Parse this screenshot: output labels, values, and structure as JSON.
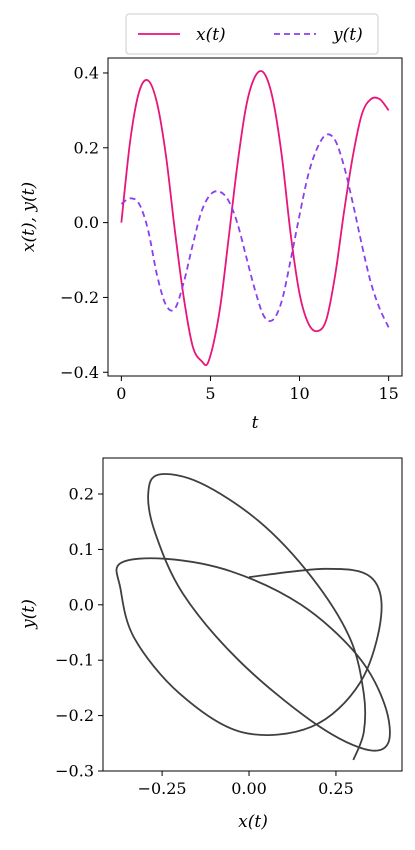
{
  "chart_data": [
    {
      "type": "line",
      "xlabel": "t",
      "ylabel": "x(t), y(t)",
      "xlim": [
        -0.75,
        15.75
      ],
      "ylim": [
        -0.41,
        0.44
      ],
      "xticks": [
        0,
        5,
        10,
        15
      ],
      "xtick_labels": [
        "0",
        "5",
        "10",
        "15"
      ],
      "yticks": [
        -0.4,
        -0.2,
        0.0,
        0.2,
        0.4
      ],
      "ytick_labels": [
        "−0.4",
        "−0.2",
        "0.0",
        "0.2",
        "0.4"
      ],
      "legend_position": "above",
      "series": [
        {
          "name": "x(t)",
          "color": "#e8157a",
          "style": "solid",
          "x": [
            0,
            0.5,
            1.0,
            1.5,
            2.0,
            2.5,
            3.0,
            3.5,
            4.0,
            4.5,
            4.9,
            5.5,
            6.0,
            6.5,
            7.0,
            7.5,
            8.0,
            8.5,
            9.0,
            9.5,
            10.0,
            10.5,
            11.0,
            11.5,
            12.0,
            12.5,
            13.0,
            13.5,
            14.0,
            14.5,
            15.0
          ],
          "values": [
            0.0,
            0.22,
            0.35,
            0.38,
            0.32,
            0.18,
            -0.02,
            -0.2,
            -0.33,
            -0.37,
            -0.37,
            -0.24,
            -0.05,
            0.15,
            0.31,
            0.39,
            0.4,
            0.33,
            0.18,
            -0.03,
            -0.19,
            -0.27,
            -0.29,
            -0.26,
            -0.14,
            0.03,
            0.18,
            0.29,
            0.33,
            0.33,
            0.3
          ]
        },
        {
          "name": "y(t)",
          "color": "#8a3ff0",
          "style": "dashed",
          "x": [
            0,
            0.5,
            1.0,
            1.5,
            2.0,
            2.5,
            3.0,
            3.5,
            4.0,
            4.5,
            5.0,
            5.5,
            6.0,
            6.5,
            7.0,
            7.5,
            8.0,
            8.5,
            9.0,
            9.5,
            10.0,
            10.5,
            11.0,
            11.5,
            12.0,
            12.5,
            13.0,
            13.5,
            14.0,
            14.5,
            15.0
          ],
          "values": [
            0.05,
            0.065,
            0.05,
            -0.02,
            -0.14,
            -0.22,
            -0.23,
            -0.16,
            -0.06,
            0.03,
            0.075,
            0.083,
            0.06,
            0.0,
            -0.09,
            -0.18,
            -0.25,
            -0.26,
            -0.21,
            -0.1,
            0.02,
            0.13,
            0.2,
            0.235,
            0.22,
            0.15,
            0.05,
            -0.06,
            -0.16,
            -0.23,
            -0.28
          ]
        }
      ]
    },
    {
      "type": "line",
      "xlabel": "x(t)",
      "ylabel": "y(t)",
      "xlim": [
        -0.42,
        0.44
      ],
      "ylim": [
        -0.3,
        0.265
      ],
      "xticks": [
        -0.25,
        0.0,
        0.25
      ],
      "xtick_labels": [
        "−0.25",
        "0.00",
        "0.25"
      ],
      "yticks": [
        -0.3,
        -0.2,
        -0.1,
        0.0,
        0.1,
        0.2
      ],
      "ytick_labels": [
        "−0.3",
        "−0.2",
        "−0.1",
        "0.0",
        "0.1",
        "0.2"
      ],
      "series": [
        {
          "color": "#3f3f3f",
          "style": "solid",
          "x": [
            0.0,
            0.22,
            0.35,
            0.38,
            0.32,
            0.18,
            -0.02,
            -0.2,
            -0.33,
            -0.37,
            -0.37,
            -0.24,
            -0.05,
            0.15,
            0.31,
            0.39,
            0.4,
            0.33,
            0.18,
            -0.03,
            -0.19,
            -0.27,
            -0.29,
            -0.26,
            -0.14,
            0.03,
            0.18,
            0.29,
            0.33,
            0.33,
            0.3
          ],
          "values": [
            0.05,
            0.065,
            0.05,
            -0.02,
            -0.14,
            -0.22,
            -0.23,
            -0.16,
            -0.06,
            0.03,
            0.075,
            0.083,
            0.06,
            0.0,
            -0.09,
            -0.18,
            -0.25,
            -0.26,
            -0.21,
            -0.1,
            0.02,
            0.13,
            0.2,
            0.235,
            0.22,
            0.15,
            0.05,
            -0.06,
            -0.16,
            -0.23,
            -0.28
          ]
        }
      ]
    }
  ]
}
